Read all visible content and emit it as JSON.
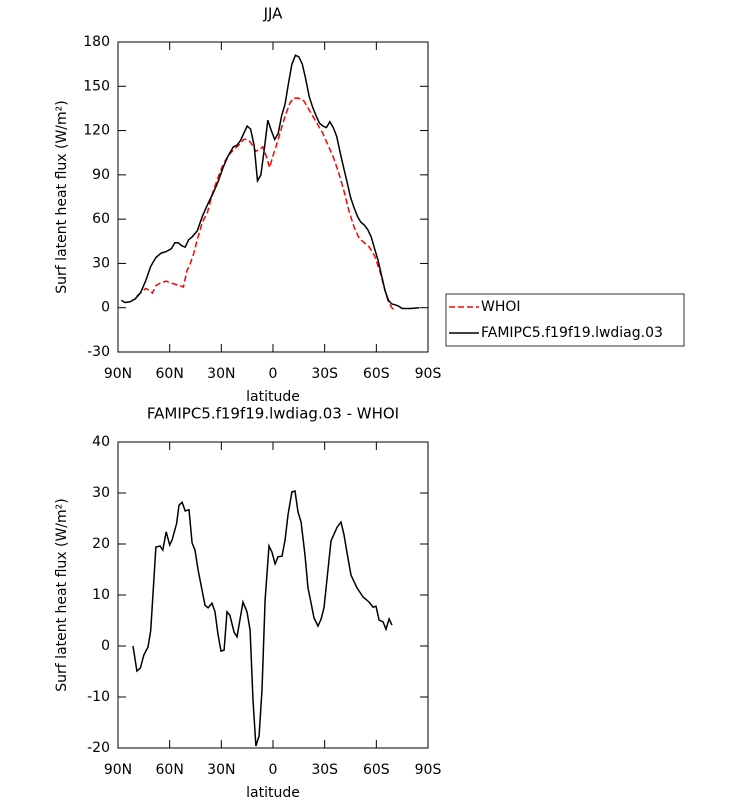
{
  "chart_data": [
    {
      "type": "line",
      "title": "JJA",
      "x_label": "latitude",
      "y_label": "Surf latent heat flux (W/m²)",
      "xlim": [
        90,
        -90
      ],
      "xticks": [
        {
          "value": 90,
          "label": "90N"
        },
        {
          "value": 60,
          "label": "60N"
        },
        {
          "value": 30,
          "label": "30N"
        },
        0,
        {
          "value": -30,
          "label": "30S"
        },
        {
          "value": -60,
          "label": "60S"
        },
        {
          "value": -90,
          "label": "90S"
        }
      ],
      "ylim": [
        -30,
        180
      ],
      "yticks": [
        -30,
        0,
        30,
        60,
        90,
        120,
        150,
        180
      ],
      "legend": "right",
      "series": [
        {
          "name": "WHOI",
          "color": "#ff0000",
          "line_style": "dashed",
          "x": [
            79,
            77,
            74,
            72,
            70,
            68,
            65,
            62,
            60,
            57,
            54,
            52,
            50,
            48,
            46,
            44,
            41,
            38,
            35,
            32,
            29,
            26,
            23,
            20,
            17,
            15,
            13,
            10,
            8,
            6,
            4,
            2,
            0,
            -2,
            -4,
            -6,
            -8,
            -10,
            -12,
            -15,
            -18,
            -20,
            -23,
            -26,
            -29,
            -32,
            -35,
            -38,
            -41,
            -44,
            -47,
            -50,
            -53,
            -56,
            -59,
            -62,
            -65,
            -67,
            -69,
            -71
          ],
          "values": [
            8,
            10,
            13,
            12,
            10,
            15,
            17,
            18,
            17,
            16,
            15,
            14,
            25,
            30,
            37,
            46,
            58,
            65,
            78,
            88,
            97,
            103,
            107,
            110,
            114,
            114,
            112,
            106,
            107,
            109,
            103,
            95,
            103,
            110,
            118,
            126,
            133,
            139,
            142,
            142,
            140,
            136,
            130,
            124,
            118,
            110,
            102,
            92,
            80,
            66,
            55,
            47,
            44,
            41,
            35,
            25,
            12,
            4,
            0,
            -2
          ]
        },
        {
          "name": "FAMIPC5.f19f19.lwdiag.03",
          "color": "#000000",
          "line_style": "solid",
          "x": [
            88,
            86,
            83,
            80,
            77,
            74,
            71,
            68,
            65,
            62,
            59,
            57,
            55,
            53,
            51,
            49,
            47,
            44,
            41,
            38,
            35,
            32,
            29,
            26,
            23,
            21,
            19,
            17,
            15,
            13,
            11,
            9,
            7,
            5,
            3,
            1,
            -1,
            -3,
            -5,
            -7,
            -9,
            -11,
            -13,
            -15,
            -17,
            -19,
            -21,
            -23,
            -25,
            -27,
            -29,
            -31,
            -33,
            -35,
            -37,
            -39,
            -41,
            -43,
            -45,
            -47,
            -49,
            -51,
            -53,
            -55,
            -57,
            -59,
            -61,
            -63,
            -65,
            -67,
            -69,
            -71,
            -73,
            -75,
            -80,
            -85
          ],
          "values": [
            5,
            3.5,
            4,
            6,
            10,
            18,
            28,
            34,
            37,
            38,
            40,
            44,
            44,
            42,
            41,
            46,
            48,
            52,
            62,
            70,
            77,
            85,
            95,
            103,
            109,
            110,
            113,
            118,
            123,
            121,
            110,
            86,
            90,
            108,
            127,
            120,
            114,
            118,
            130,
            138,
            152,
            165,
            171,
            170,
            165,
            155,
            143,
            136,
            130,
            125,
            123,
            122,
            126,
            122,
            116,
            105,
            95,
            85,
            75,
            68,
            62,
            58,
            56,
            53,
            48,
            40,
            32,
            22,
            12,
            5,
            2.5,
            2,
            1,
            -0.5,
            -0.5,
            0
          ]
        }
      ]
    },
    {
      "type": "line",
      "title": "FAMIPC5.f19f19.lwdiag.03 - WHOI",
      "x_label": "latitude",
      "y_label": "Surf latent heat flux (W/m²)",
      "xlim": [
        90,
        -90
      ],
      "xticks": [
        {
          "value": 90,
          "label": "90N"
        },
        {
          "value": 60,
          "label": "60N"
        },
        {
          "value": 30,
          "label": "30N"
        },
        0,
        {
          "value": -30,
          "label": "30S"
        },
        {
          "value": -60,
          "label": "60S"
        },
        {
          "value": -90,
          "label": "90S"
        }
      ],
      "ylim": [
        -20,
        40
      ],
      "yticks": [
        -20,
        -10,
        0,
        10,
        20,
        30,
        40
      ],
      "series": [
        {
          "color": "#000000",
          "line_style": "solid",
          "x": [
            81.3,
            79,
            77,
            75,
            72.6,
            71,
            68,
            65.6,
            64,
            62,
            60,
            58.6,
            56,
            54.6,
            52.8,
            51,
            48.8,
            47,
            45.3,
            43.5,
            41.2,
            39.5,
            37.7,
            35.4,
            33.7,
            32,
            30.2,
            28.4,
            26.7,
            25,
            22.6,
            20.9,
            19.2,
            17.4,
            15.1,
            13.3,
            11.6,
            9.9,
            8.1,
            6.4,
            4.6,
            2.3,
            0.6,
            -1.2,
            -2.9,
            -5.2,
            -7,
            -8.7,
            -11,
            -12.8,
            -14.5,
            -16.3,
            -18.6,
            -20.3,
            -22,
            -23.8,
            -26.1,
            -27.9,
            -29.6,
            -33.7,
            -37.2,
            -39.5,
            -41.2,
            -43,
            -45.3,
            -48.8,
            -52.3,
            -55.8,
            -58.1,
            -59.8,
            -61.6,
            -63.9,
            -65.6,
            -67.4,
            -69.1
          ],
          "values": [
            0,
            -4.9,
            -4.3,
            -1.8,
            -0.2,
            3,
            19.4,
            19.6,
            18.8,
            22.4,
            19.8,
            20.8,
            24,
            27.6,
            28.2,
            26.5,
            26.7,
            20.2,
            18.8,
            14.9,
            11,
            8,
            7.5,
            8.4,
            6.7,
            2.4,
            -1,
            -0.8,
            6.7,
            6,
            2.7,
            1.8,
            5.1,
            8.6,
            6.7,
            3.1,
            -10.6,
            -19.6,
            -17.6,
            -8.6,
            9,
            19.6,
            18.4,
            16.1,
            17.5,
            17.6,
            20.8,
            25.7,
            30.2,
            30.4,
            26.3,
            24.3,
            17.8,
            11.4,
            8.6,
            5.5,
            3.9,
            5.3,
            7.5,
            20.6,
            23.3,
            24.3,
            21.8,
            18.2,
            13.9,
            11.4,
            9.6,
            8.6,
            7.6,
            7.8,
            5.1,
            4.7,
            3.3,
            5.3,
            4.1
          ]
        }
      ]
    }
  ]
}
